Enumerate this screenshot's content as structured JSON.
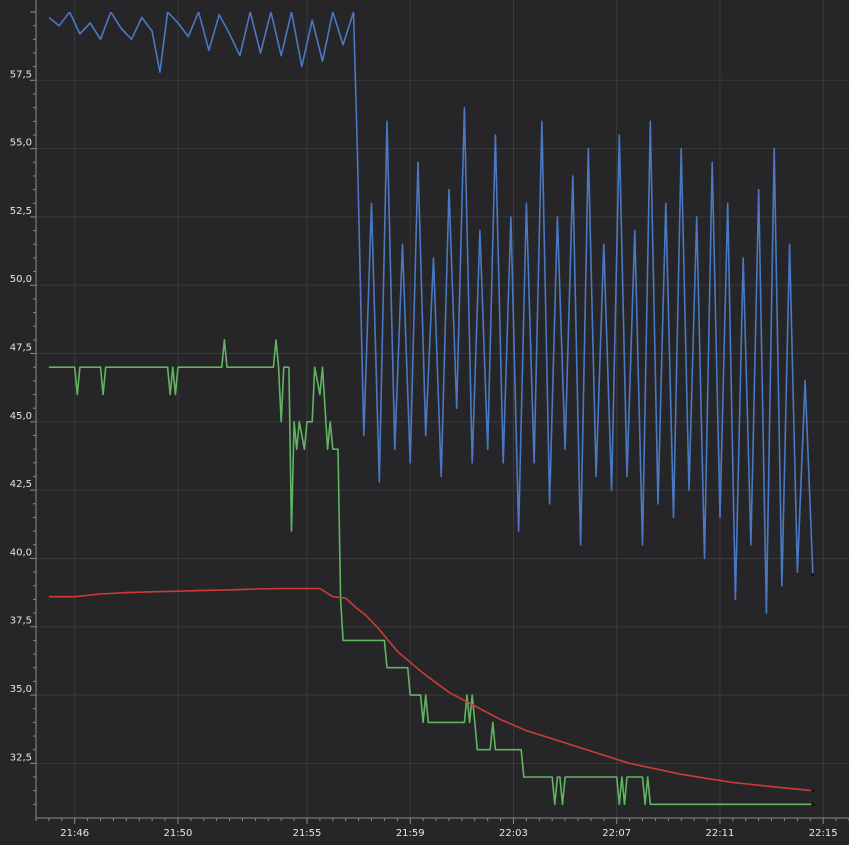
{
  "chart_data": {
    "type": "line",
    "title": "",
    "xlabel": "",
    "ylabel": "",
    "ylim": [
      30.5,
      60.0
    ],
    "xlim": [
      "21:44:30",
      "22:16:00"
    ],
    "grid": true,
    "legend": "none",
    "background": "#262628",
    "y_ticks": [
      "32,5",
      "35,0",
      "37,5",
      "40,0",
      "42,5",
      "45,0",
      "47,5",
      "50,0",
      "52,5",
      "55,0",
      "57,5"
    ],
    "y_tick_values": [
      32.5,
      35.0,
      37.5,
      40.0,
      42.5,
      45.0,
      47.5,
      50.0,
      52.5,
      55.0,
      57.5
    ],
    "x_ticks": [
      "21:46",
      "21:50",
      "21:55",
      "21:59",
      "22:03",
      "22:07",
      "22:11",
      "22:15"
    ],
    "x_tick_minutes": [
      0,
      4,
      9,
      13,
      17,
      21,
      25,
      29
    ],
    "x_origin": "21:46",
    "series": [
      {
        "color": "#4a78c2",
        "x_minutes": [
          -1.0,
          -0.6,
          -0.2,
          0.2,
          0.6,
          1.0,
          1.4,
          1.8,
          2.2,
          2.6,
          3.0,
          3.3,
          3.6,
          4.0,
          4.4,
          4.8,
          5.2,
          5.6,
          6.0,
          6.4,
          6.8,
          7.2,
          7.6,
          8.0,
          8.4,
          8.8,
          9.2,
          9.6,
          10.0,
          10.4,
          10.8,
          10.95,
          11.2,
          11.5,
          11.8,
          12.1,
          12.4,
          12.7,
          13.0,
          13.3,
          13.6,
          13.9,
          14.2,
          14.5,
          14.8,
          15.1,
          15.4,
          15.7,
          16.0,
          16.3,
          16.6,
          16.9,
          17.2,
          17.5,
          17.8,
          18.1,
          18.4,
          18.7,
          19.0,
          19.3,
          19.6,
          19.9,
          20.2,
          20.5,
          20.8,
          21.1,
          21.4,
          21.7,
          22.0,
          22.3,
          22.6,
          22.9,
          23.2,
          23.5,
          23.8,
          24.1,
          24.4,
          24.7,
          25.0,
          25.3,
          25.6,
          25.9,
          26.2,
          26.5,
          26.8,
          27.1,
          27.4,
          27.7,
          28.0,
          28.3,
          28.6
        ],
        "y": [
          59.8,
          59.5,
          60.0,
          59.2,
          59.6,
          59.0,
          60.0,
          59.4,
          59.0,
          59.8,
          59.3,
          57.8,
          60.0,
          59.6,
          59.1,
          60.0,
          58.6,
          59.9,
          59.2,
          58.4,
          60.0,
          58.5,
          60.0,
          58.4,
          60.0,
          58.0,
          59.7,
          58.2,
          60.0,
          58.8,
          60.0,
          55.0,
          44.5,
          53.0,
          42.8,
          56.0,
          44.0,
          51.5,
          43.5,
          54.5,
          44.5,
          51.0,
          43.0,
          53.5,
          45.5,
          56.5,
          43.5,
          52.0,
          44.0,
          55.5,
          43.5,
          52.5,
          41.0,
          53.0,
          43.5,
          56.0,
          42.0,
          52.5,
          44.0,
          54.0,
          40.5,
          55.0,
          43.0,
          51.5,
          42.5,
          55.5,
          43.0,
          52.0,
          40.5,
          56.0,
          42.0,
          53.0,
          41.5,
          55.0,
          42.5,
          52.5,
          40.0,
          54.5,
          41.5,
          53.0,
          38.5,
          51.0,
          40.5,
          53.5,
          38.0,
          55.0,
          39.0,
          51.5,
          39.5,
          46.5,
          39.4
        ]
      },
      {
        "color": "#62b462",
        "x_minutes": [
          -1.0,
          0.0,
          0.1,
          0.2,
          1.0,
          1.1,
          1.2,
          3.6,
          3.7,
          3.8,
          3.9,
          4.0,
          4.1,
          5.7,
          5.8,
          5.9,
          7.7,
          7.8,
          7.9,
          8.0,
          8.1,
          8.3,
          8.4,
          8.5,
          8.6,
          8.7,
          8.9,
          9.0,
          9.1,
          9.2,
          9.3,
          9.5,
          9.6,
          9.8,
          9.9,
          10.0,
          10.2,
          10.3,
          10.4,
          10.5,
          10.6,
          10.7,
          10.8,
          10.9,
          11.0,
          11.5,
          12.0,
          12.1,
          12.9,
          13.0,
          13.4,
          13.5,
          13.6,
          13.7,
          14.3,
          14.6,
          15.1,
          15.2,
          15.3,
          15.4,
          15.5,
          15.6,
          16.1,
          16.2,
          16.3,
          16.4,
          16.5,
          16.6,
          16.7,
          17.3,
          17.4,
          18.5,
          18.6,
          18.7,
          18.8,
          18.9,
          19.0,
          21.0,
          21.1,
          21.2,
          21.3,
          21.4,
          22.0,
          22.1,
          22.2,
          22.3,
          22.4,
          22.6,
          22.7,
          22.8,
          22.9,
          23.0,
          28.6
        ],
        "y": [
          47.0,
          47.0,
          46.0,
          47.0,
          47.0,
          46.0,
          47.0,
          47.0,
          46.0,
          47.0,
          46.0,
          47.0,
          47.0,
          47.0,
          48.0,
          47.0,
          47.0,
          48.0,
          47.0,
          45.0,
          47.0,
          47.0,
          41.0,
          45.0,
          44.0,
          45.0,
          44.0,
          45.0,
          45.0,
          45.0,
          47.0,
          46.0,
          47.0,
          44.0,
          45.0,
          44.0,
          44.0,
          38.5,
          37.0,
          37.0,
          37.0,
          37.0,
          37.0,
          37.0,
          37.0,
          37.0,
          37.0,
          36.0,
          36.0,
          35.0,
          35.0,
          34.0,
          35.0,
          34.0,
          34.0,
          34.0,
          34.0,
          35.0,
          34.0,
          35.0,
          34.0,
          33.0,
          33.0,
          34.0,
          33.0,
          33.0,
          33.0,
          33.0,
          33.0,
          33.0,
          32.0,
          32.0,
          31.0,
          32.0,
          32.0,
          31.0,
          32.0,
          32.0,
          31.0,
          32.0,
          31.0,
          32.0,
          32.0,
          31.0,
          32.0,
          31.0,
          31.0,
          31.0,
          31.0,
          31.0,
          31.0,
          31.0,
          31.0
        ]
      },
      {
        "color": "#cc3b37",
        "x_minutes": [
          -1.0,
          0.0,
          1.0,
          2.0,
          3.0,
          4.0,
          5.0,
          6.0,
          7.0,
          8.0,
          8.5,
          9.0,
          9.5,
          10.0,
          10.5,
          10.9,
          11.3,
          11.8,
          12.5,
          13.5,
          14.5,
          15.5,
          16.5,
          17.5,
          18.5,
          19.5,
          20.5,
          21.5,
          22.5,
          23.5,
          24.5,
          25.5,
          26.5,
          27.5,
          28.6
        ],
        "y": [
          38.6,
          38.6,
          38.7,
          38.75,
          38.78,
          38.8,
          38.83,
          38.85,
          38.88,
          38.9,
          38.9,
          38.9,
          38.9,
          38.6,
          38.55,
          38.2,
          37.9,
          37.4,
          36.6,
          35.8,
          35.1,
          34.6,
          34.1,
          33.7,
          33.4,
          33.1,
          32.8,
          32.5,
          32.3,
          32.1,
          31.95,
          31.8,
          31.7,
          31.6,
          31.5
        ]
      }
    ]
  }
}
